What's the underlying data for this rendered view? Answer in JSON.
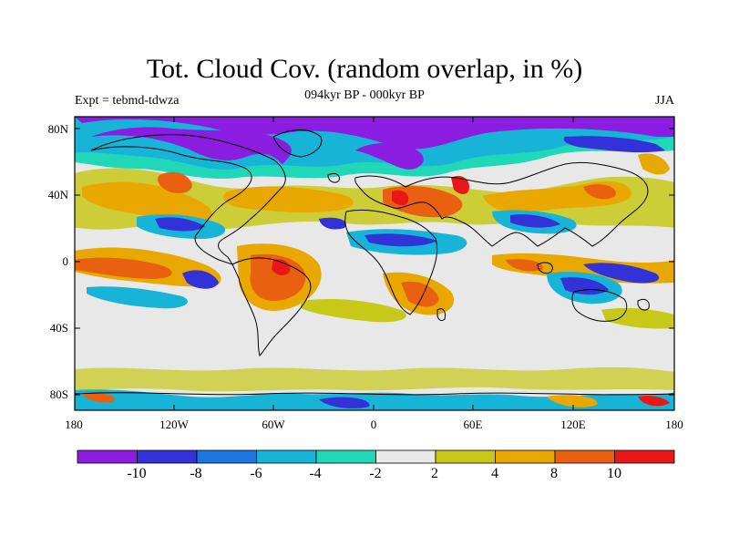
{
  "title": "Tot. Cloud Cov. (random overlap, in %)",
  "subtitle": "094kyr BP - 000kyr BP",
  "left_label": "Expt = tebmd-tdwza",
  "right_label": "JJA",
  "lat_ticks": [
    "80N",
    "40N",
    "0",
    "40S",
    "80S"
  ],
  "lon_ticks": [
    "180",
    "120W",
    "60W",
    "0",
    "60E",
    "120E",
    "180"
  ],
  "colorbar": {
    "labels": [
      "-10",
      "-8",
      "-6",
      "-4",
      "-2",
      "2",
      "4",
      "8",
      "10"
    ],
    "colors": [
      "#8a1de0",
      "#3232d8",
      "#1a78e0",
      "#18b4d8",
      "#20d8b8",
      "#e8e8e8",
      "#c8c818",
      "#e8a800",
      "#e86010",
      "#e81818"
    ]
  }
}
